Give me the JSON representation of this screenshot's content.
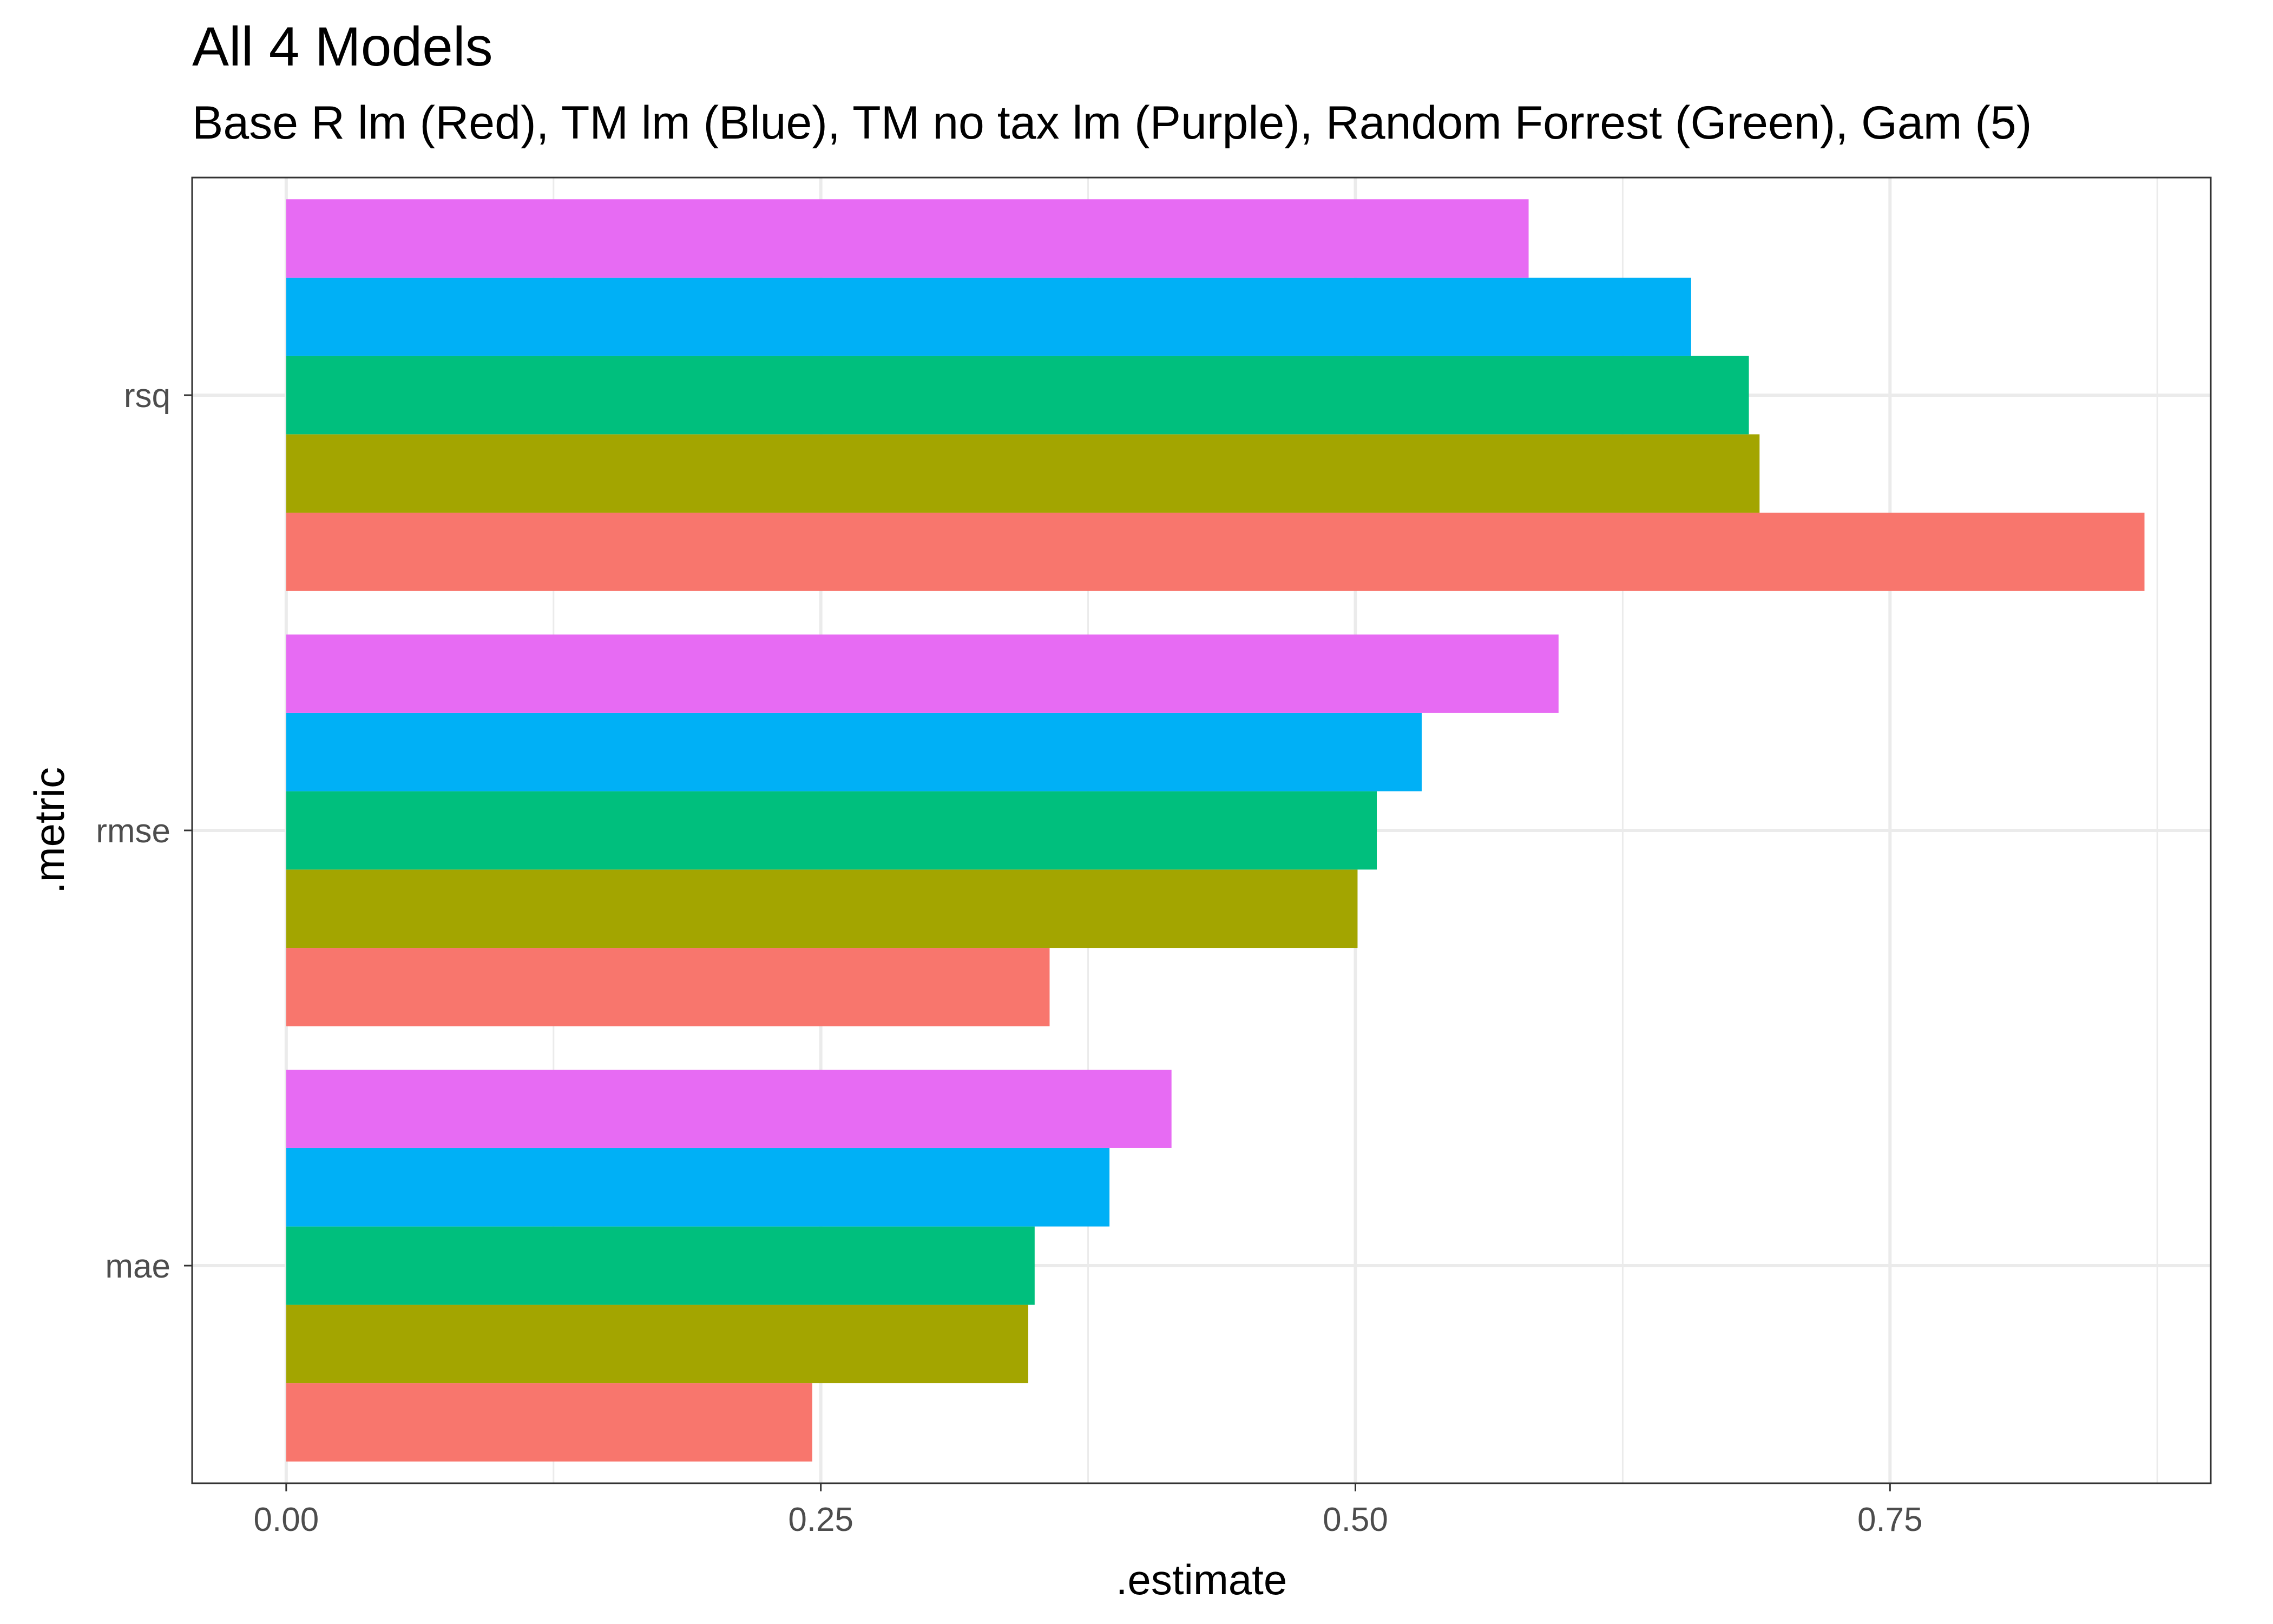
{
  "chart_data": {
    "type": "bar",
    "orientation": "horizontal",
    "title": "All 4 Models",
    "subtitle": "Base R lm (Red), TM lm (Blue), TM no tax lm (Purple), Random Forrest (Green), Gam (5)",
    "xlabel": ".estimate",
    "ylabel": ".metric",
    "categories": [
      "mae",
      "rmse",
      "rsq"
    ],
    "xlim": [
      -0.044,
      0.9
    ],
    "xticks": [
      0.0,
      0.25,
      0.5,
      0.75
    ],
    "xtick_labels": [
      "0.00",
      "0.25",
      "0.50",
      "0.75"
    ],
    "grid": true,
    "legend": "none",
    "series": [
      {
        "color": "#F8766D",
        "values": [
          0.246,
          0.357,
          0.869
        ]
      },
      {
        "color": "#A3A500",
        "values": [
          0.347,
          0.501,
          0.689
        ]
      },
      {
        "color": "#00BF7D",
        "values": [
          0.35,
          0.51,
          0.684
        ]
      },
      {
        "color": "#00B0F6",
        "values": [
          0.385,
          0.531,
          0.657
        ]
      },
      {
        "color": "#E76BF3",
        "values": [
          0.414,
          0.595,
          0.581
        ]
      }
    ]
  }
}
